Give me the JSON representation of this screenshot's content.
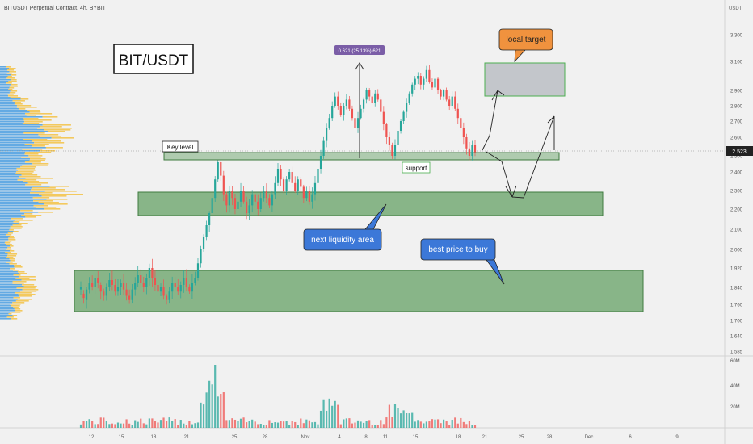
{
  "header": {
    "symbol_line": "BITUSDT Perpetual Contract, 4h, BYBIT",
    "axis_unit": "USDT"
  },
  "labels": {
    "title": "BIT/USDT",
    "key_level": "Key level",
    "support": "support",
    "next_liquidity": "next liquidity area",
    "best_price": "best price to buy",
    "local_target": "local target",
    "measure": "0.621 (25.13%) 621"
  },
  "colors": {
    "up": "#26a69a",
    "down": "#ef5350",
    "zone_green": "#5f9e5f",
    "target_box": "#b8bcc2",
    "callout_blue": "#3c78d8",
    "callout_orange": "#f0923e",
    "measure_purple": "#7b5ea7",
    "profile_blue": "#4a9ee0",
    "profile_yellow": "#f3c244"
  },
  "chart_data": {
    "type": "candlestick",
    "timeframe": "4h",
    "last_price": "2.523",
    "y_ticks": [
      "3.300",
      "3.100",
      "2.900",
      "2.800",
      "2.700",
      "2.600",
      "2.500",
      "2.400",
      "2.300",
      "2.200",
      "2.100",
      "2.000",
      "1.920",
      "1.840",
      "1.760",
      "1.700",
      "1.640",
      "1.585"
    ],
    "x_ticks": [
      "12",
      "15",
      "18",
      "21",
      "25",
      "28",
      "Nov",
      "4",
      "8",
      "11",
      "15",
      "18",
      "21",
      "25",
      "28",
      "Dec",
      "6",
      "9"
    ],
    "volume_ticks": [
      "60M",
      "40M",
      "20M"
    ],
    "price_path": [
      [
        1.83,
        1.84
      ],
      [
        1.81,
        1.79
      ],
      [
        1.78,
        1.83
      ],
      [
        1.83,
        1.86
      ],
      [
        1.86,
        1.84
      ],
      [
        1.84,
        1.88
      ],
      [
        1.88,
        1.86
      ],
      [
        1.85,
        1.82
      ],
      [
        1.82,
        1.8
      ],
      [
        1.8,
        1.84
      ],
      [
        1.84,
        1.87
      ],
      [
        1.87,
        1.85
      ],
      [
        1.85,
        1.82
      ],
      [
        1.82,
        1.84
      ],
      [
        1.84,
        1.86
      ],
      [
        1.86,
        1.83
      ],
      [
        1.83,
        1.8
      ],
      [
        1.8,
        1.78
      ],
      [
        1.78,
        1.83
      ],
      [
        1.83,
        1.86
      ],
      [
        1.86,
        1.89
      ],
      [
        1.89,
        1.86
      ],
      [
        1.86,
        1.84
      ],
      [
        1.84,
        1.88
      ],
      [
        1.88,
        1.92
      ],
      [
        1.92,
        1.88
      ],
      [
        1.88,
        1.85
      ],
      [
        1.85,
        1.82
      ],
      [
        1.82,
        1.84
      ],
      [
        1.84,
        1.8
      ],
      [
        1.8,
        1.78
      ],
      [
        1.78,
        1.82
      ],
      [
        1.82,
        1.86
      ],
      [
        1.86,
        1.84
      ],
      [
        1.84,
        1.82
      ],
      [
        1.82,
        1.85
      ],
      [
        1.85,
        1.88
      ],
      [
        1.88,
        1.84
      ],
      [
        1.84,
        1.82
      ],
      [
        1.82,
        1.86
      ],
      [
        1.86,
        1.88
      ],
      [
        1.88,
        1.94
      ],
      [
        1.94,
        2.0
      ],
      [
        2.0,
        2.06
      ],
      [
        2.06,
        2.12
      ],
      [
        2.12,
        2.18
      ],
      [
        2.18,
        2.26
      ],
      [
        2.26,
        2.36
      ],
      [
        2.36,
        2.46
      ],
      [
        2.46,
        2.38
      ],
      [
        2.38,
        2.28
      ],
      [
        2.28,
        2.22
      ],
      [
        2.22,
        2.3
      ],
      [
        2.3,
        2.26
      ],
      [
        2.26,
        2.2
      ],
      [
        2.2,
        2.24
      ],
      [
        2.24,
        2.3
      ],
      [
        2.3,
        2.24
      ],
      [
        2.24,
        2.18
      ],
      [
        2.18,
        2.22
      ],
      [
        2.22,
        2.28
      ],
      [
        2.28,
        2.24
      ],
      [
        2.24,
        2.2
      ],
      [
        2.2,
        2.26
      ],
      [
        2.26,
        2.3
      ],
      [
        2.3,
        2.26
      ],
      [
        2.26,
        2.22
      ],
      [
        2.22,
        2.28
      ],
      [
        2.28,
        2.34
      ],
      [
        2.34,
        2.42
      ],
      [
        2.42,
        2.36
      ],
      [
        2.36,
        2.3
      ],
      [
        2.3,
        2.36
      ],
      [
        2.36,
        2.4
      ],
      [
        2.4,
        2.34
      ],
      [
        2.34,
        2.3
      ],
      [
        2.3,
        2.36
      ],
      [
        2.36,
        2.32
      ],
      [
        2.32,
        2.26
      ],
      [
        2.26,
        2.3
      ],
      [
        2.3,
        2.24
      ],
      [
        2.24,
        2.28
      ],
      [
        2.28,
        2.34
      ],
      [
        2.34,
        2.42
      ],
      [
        2.42,
        2.5
      ],
      [
        2.5,
        2.58
      ],
      [
        2.58,
        2.66
      ],
      [
        2.66,
        2.72
      ],
      [
        2.72,
        2.8
      ],
      [
        2.8,
        2.86
      ],
      [
        2.86,
        2.8
      ],
      [
        2.8,
        2.74
      ],
      [
        2.74,
        2.8
      ],
      [
        2.8,
        2.84
      ],
      [
        2.84,
        2.78
      ],
      [
        2.78,
        2.72
      ],
      [
        2.72,
        2.66
      ],
      [
        2.66,
        2.72
      ],
      [
        2.72,
        2.78
      ],
      [
        2.78,
        2.84
      ],
      [
        2.84,
        2.9
      ],
      [
        2.9,
        2.86
      ],
      [
        2.86,
        2.82
      ],
      [
        2.82,
        2.88
      ],
      [
        2.88,
        2.84
      ],
      [
        2.84,
        2.76
      ],
      [
        2.76,
        2.68
      ],
      [
        2.68,
        2.6
      ],
      [
        2.6,
        2.56
      ],
      [
        2.56,
        2.5
      ],
      [
        2.5,
        2.56
      ],
      [
        2.56,
        2.64
      ],
      [
        2.64,
        2.7
      ],
      [
        2.7,
        2.76
      ],
      [
        2.76,
        2.82
      ],
      [
        2.82,
        2.88
      ],
      [
        2.88,
        2.94
      ],
      [
        2.94,
        2.98
      ],
      [
        2.98,
        3.0
      ],
      [
        3.0,
        2.94
      ],
      [
        2.94,
        2.98
      ],
      [
        2.98,
        3.04
      ],
      [
        3.04,
        2.96
      ],
      [
        2.96,
        2.92
      ],
      [
        2.92,
        2.98
      ],
      [
        2.98,
        2.9
      ],
      [
        2.9,
        2.86
      ],
      [
        2.86,
        2.9
      ],
      [
        2.9,
        2.84
      ],
      [
        2.84,
        2.8
      ],
      [
        2.8,
        2.86
      ],
      [
        2.86,
        2.78
      ],
      [
        2.78,
        2.72
      ],
      [
        2.72,
        2.66
      ],
      [
        2.66,
        2.6
      ],
      [
        2.6,
        2.54
      ],
      [
        2.54,
        2.5
      ],
      [
        2.5,
        2.56
      ],
      [
        2.56,
        2.52
      ]
    ],
    "zones": [
      {
        "kind": "key-level",
        "low": 2.49,
        "high": 2.52
      },
      {
        "kind": "next-liquidity-area",
        "low": 2.17,
        "high": 2.29
      },
      {
        "kind": "best-price-to-buy",
        "low": 1.74,
        "high": 1.92
      },
      {
        "kind": "local-target",
        "low": 2.87,
        "high": 3.08
      }
    ],
    "measure": {
      "from": 2.48,
      "to": 3.1
    }
  }
}
